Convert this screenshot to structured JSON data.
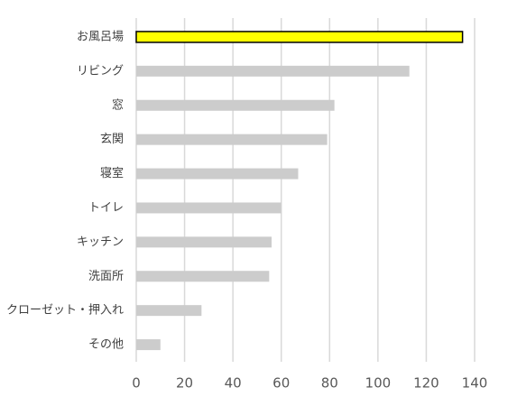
{
  "chart_data": {
    "type": "barh",
    "categories": [
      "お風呂場",
      "リビング",
      "窓",
      "玄関",
      "寝室",
      "トイレ",
      "キッチン",
      "洗面所",
      "クローゼット・押入れ",
      "その他"
    ],
    "values": [
      135,
      113,
      82,
      79,
      67,
      60,
      56,
      55,
      27,
      10
    ],
    "colors": [
      "#ffff00",
      "#cccccc",
      "#cccccc",
      "#cccccc",
      "#cccccc",
      "#cccccc",
      "#cccccc",
      "#cccccc",
      "#cccccc",
      "#cccccc"
    ],
    "edge_colors": [
      "#000000",
      "none",
      "none",
      "none",
      "none",
      "none",
      "none",
      "none",
      "none",
      "none"
    ],
    "xlim": [
      0,
      140
    ],
    "xticks": [
      0,
      20,
      40,
      60,
      80,
      100,
      120,
      140
    ],
    "grid": true,
    "grid_color": "#d9d9d9"
  }
}
